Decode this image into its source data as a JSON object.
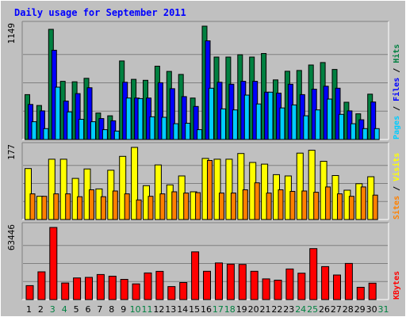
{
  "chart_data": {
    "type": "bar",
    "title": "Daily usage for September 2011",
    "days": [
      "1",
      "2",
      "3",
      "4",
      "5",
      "6",
      "7",
      "8",
      "9",
      "10",
      "11",
      "12",
      "13",
      "14",
      "15",
      "16",
      "17",
      "18",
      "19",
      "20",
      "21",
      "22",
      "23",
      "24",
      "25",
      "26",
      "27",
      "28",
      "29",
      "30",
      "31"
    ],
    "weekend_days": [
      "3",
      "4",
      "10",
      "11",
      "17",
      "18",
      "24",
      "25",
      "31"
    ],
    "grid": true,
    "panels": [
      {
        "id": "hits",
        "ymax": 1149,
        "ymax_label": "1149",
        "legend": [
          {
            "text": "Pages",
            "color": "#00ccff"
          },
          {
            "text": "Files",
            "color": "#0000ff"
          },
          {
            "text": "Hits",
            "color": "#008040"
          }
        ],
        "series": [
          {
            "name": "Hits",
            "color": "#008040",
            "values": [
              455,
              345,
              1117,
              590,
              585,
              620,
              268,
              240,
              796,
              610,
              600,
              743,
              690,
              660,
              420,
              1149,
              836,
              836,
              859,
              836,
              872,
              604,
              692,
              700,
              755,
              780,
              710,
              378,
              260,
              460,
              0
            ]
          },
          {
            "name": "Files",
            "color": "#0000ff",
            "values": [
              355,
              290,
              905,
              390,
              465,
              525,
              212,
              190,
              580,
              420,
              420,
              575,
              515,
              435,
              335,
              1000,
              580,
              560,
              590,
              590,
              480,
              470,
              560,
              455,
              510,
              540,
              520,
              290,
              200,
              380,
              0
            ]
          },
          {
            "name": "Pages",
            "color": "#00ccff",
            "values": [
              180,
              110,
              530,
              280,
              205,
              180,
              100,
              85,
              420,
              415,
              230,
              225,
              160,
              165,
              100,
              520,
              310,
              300,
              450,
              360,
              480,
              320,
              350,
              240,
              300,
              410,
              255,
              160,
              110,
              110,
              0
            ]
          }
        ]
      },
      {
        "id": "visits",
        "ymax": 177,
        "ymax_label": "177",
        "legend": [
          {
            "text": "Sites",
            "color": "#ff8000"
          },
          {
            "text": "Visits",
            "color": "#ffff00"
          }
        ],
        "series": [
          {
            "name": "Visits",
            "color": "#ffff00",
            "values": [
              125,
              57,
              148,
              148,
              101,
              124,
              75,
              121,
              155,
              177,
              83,
              134,
              85,
              107,
              68,
              150,
              148,
              148,
              162,
              140,
              136,
              110,
              107,
              163,
              170,
              143,
              108,
              72,
              88,
              105,
              0
            ]
          },
          {
            "name": "Sites",
            "color": "#ff8000",
            "values": [
              63,
              57,
              63,
              63,
              56,
              73,
              56,
              70,
              63,
              48,
              57,
              63,
              68,
              65,
              66,
              145,
              65,
              65,
              73,
              90,
              65,
              73,
              69,
              70,
              67,
              80,
              63,
              57,
              80,
              60,
              0
            ]
          }
        ]
      },
      {
        "id": "kbytes",
        "ymax": 63446,
        "ymax_label": "63446",
        "legend": [
          {
            "text": "KBytes",
            "color": "#ff0000"
          }
        ],
        "series": [
          {
            "name": "KBytes",
            "color": "#ff0000",
            "values": [
              12300,
              24400,
              63446,
              14550,
              19000,
              19500,
              22000,
              20600,
              17800,
              13800,
              23400,
              24800,
              11400,
              15000,
              42000,
              24900,
              32200,
              31200,
              30900,
              24900,
              18200,
              17100,
              26900,
              23200,
              44800,
              29000,
              21600,
              31800,
              10800,
              14450,
              0
            ]
          }
        ]
      }
    ]
  }
}
